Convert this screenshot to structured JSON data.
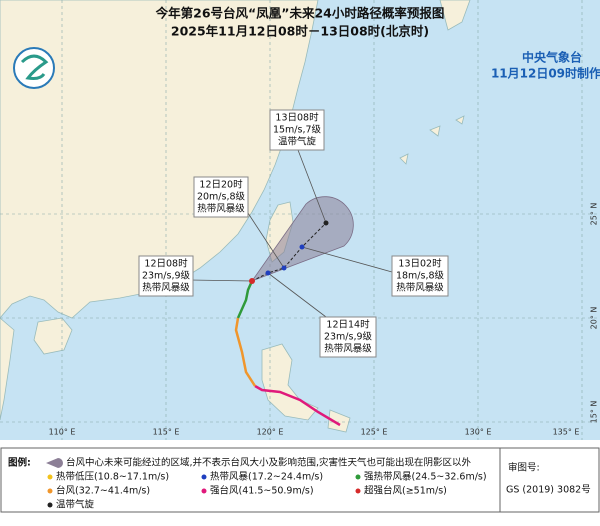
{
  "header": {
    "title": "今年第26号台风“凤凰”未来24小时路径概率预报图",
    "subtitle": "2025年11月12日08时－13日08时(北京时)",
    "agency": "中央气象台",
    "made_time": "11月12日09时制作"
  },
  "longitude_labels": [
    "110° E",
    "115° E",
    "120° E",
    "125° E",
    "130° E",
    "135° E"
  ],
  "latitude_labels": [
    "25° N",
    "20° N",
    "15° N"
  ],
  "forecast_points": [
    {
      "time": "12日08时",
      "wind": "23m/s,9级",
      "category": "热带风暴级"
    },
    {
      "time": "12日14时",
      "wind": "23m/s,9级",
      "category": "热带风暴级"
    },
    {
      "time": "12日20时",
      "wind": "20m/s,8级",
      "category": "热带风暴级"
    },
    {
      "time": "13日02时",
      "wind": "18m/s,8级",
      "category": "热带风暴级"
    },
    {
      "time": "13日08时",
      "wind": "15m/s,7级",
      "category": "温带气旋"
    }
  ],
  "legend": {
    "heading": "图例:",
    "cone": "台风中心未来可能经过的区域,并不表示台风大小及影响范围,灾害性天气也可能出现在阴影区以外",
    "items": [
      "热带低压(10.8~17.1m/s)",
      "热带风暴(17.2~24.4m/s)",
      "强热带风暴(24.5~32.6m/s)",
      "台风(32.7~41.4m/s)",
      "强台风(41.5~50.9m/s)",
      "超强台风(≥51m/s)",
      "温带气旋"
    ]
  },
  "map_approval": {
    "label": "审图号:",
    "number": "GS (2019) 3082号"
  }
}
